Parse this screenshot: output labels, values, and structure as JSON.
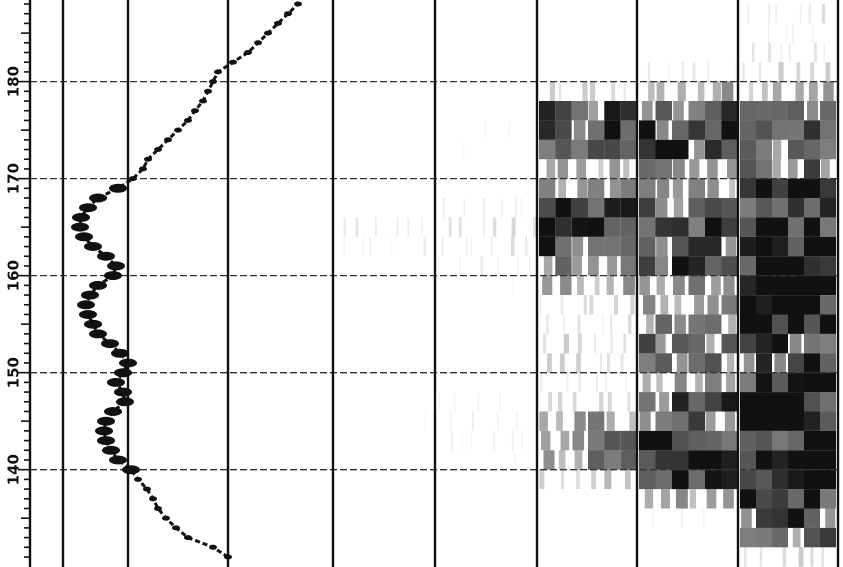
{
  "chart_data": {
    "type": "heatmap",
    "title": "",
    "xlabel": "",
    "ylabel": "",
    "ylim": [
      131,
      188
    ],
    "y_ticks": [
      140,
      150,
      160,
      170,
      180
    ],
    "y_tick_labels": [
      "140",
      "150",
      "160",
      "170",
      "180"
    ],
    "grid": true,
    "colors": {
      "ink": "#111111",
      "background": "#ffffff",
      "grid_dash": "#333333"
    },
    "series": [
      {
        "type": "line",
        "y": [
          131,
          132,
          133,
          134,
          135,
          136,
          137,
          138,
          139,
          140,
          141,
          142,
          143,
          144,
          145,
          146,
          147,
          148,
          149,
          150,
          151,
          152,
          153,
          154,
          155,
          156,
          157,
          158,
          159,
          160,
          161,
          162,
          163,
          164,
          165,
          166,
          167,
          168,
          169,
          170,
          171,
          172,
          173,
          174,
          175,
          176,
          177,
          178,
          179,
          180,
          181,
          182,
          183,
          184,
          185,
          186,
          187,
          188
        ],
        "x": [
          1.0,
          0.85,
          0.6,
          0.48,
          0.38,
          0.3,
          0.25,
          0.19,
          0.1,
          0.03,
          -0.1,
          -0.17,
          -0.22,
          -0.24,
          -0.22,
          -0.15,
          -0.03,
          -0.05,
          -0.12,
          -0.05,
          0.0,
          -0.08,
          -0.18,
          -0.3,
          -0.35,
          -0.4,
          -0.42,
          -0.38,
          -0.3,
          -0.15,
          -0.12,
          -0.22,
          -0.35,
          -0.44,
          -0.48,
          -0.47,
          -0.4,
          -0.3,
          -0.1,
          0.05,
          0.15,
          0.2,
          0.3,
          0.4,
          0.5,
          0.6,
          0.67,
          0.75,
          0.8,
          0.85,
          0.9,
          1.05,
          1.2,
          1.3,
          1.4,
          1.5,
          1.6,
          1.7
        ]
      }
    ],
    "density": {
      "y": [
        131,
        133,
        135,
        137,
        139,
        141,
        143,
        145,
        147,
        149,
        151,
        153,
        155,
        157,
        159,
        161,
        163,
        165,
        167,
        169,
        171,
        173,
        175,
        177,
        179,
        181,
        183,
        185,
        187
      ],
      "col_3": [
        0.0,
        0.0,
        0.0,
        0.0,
        0.0,
        0.0,
        0.02,
        0.03,
        0.02,
        0.0,
        0.0,
        0.0,
        0.0,
        0.0,
        0.0,
        0.02,
        0.06,
        0.08,
        0.02,
        0.0,
        0.0,
        0.0,
        0.0,
        0.0,
        0.0,
        0.0,
        0.0,
        0.0,
        0.0
      ],
      "col_4": [
        0.0,
        0.0,
        0.0,
        0.0,
        0.02,
        0.04,
        0.05,
        0.05,
        0.04,
        0.02,
        0.0,
        0.0,
        0.0,
        0.0,
        0.03,
        0.06,
        0.1,
        0.12,
        0.06,
        0.02,
        0.02,
        0.03,
        0.03,
        0.02,
        0.0,
        0.0,
        0.0,
        0.0,
        0.0
      ],
      "col_5": [
        0.0,
        0.0,
        0.0,
        0.02,
        0.2,
        0.45,
        0.5,
        0.4,
        0.15,
        0.08,
        0.15,
        0.15,
        0.1,
        0.12,
        0.35,
        0.55,
        0.7,
        0.85,
        0.8,
        0.55,
        0.35,
        0.6,
        0.8,
        0.65,
        0.15,
        0.0,
        0.0,
        0.0,
        0.0
      ],
      "col_6": [
        0.0,
        0.02,
        0.05,
        0.35,
        0.75,
        0.8,
        0.75,
        0.7,
        0.7,
        0.45,
        0.5,
        0.55,
        0.5,
        0.45,
        0.55,
        0.7,
        0.7,
        0.75,
        0.6,
        0.4,
        0.45,
        0.7,
        0.8,
        0.6,
        0.35,
        0.08,
        0.0,
        0.0,
        0.0
      ],
      "col_7": [
        0.15,
        0.55,
        0.7,
        0.85,
        0.9,
        0.95,
        0.95,
        0.9,
        0.95,
        0.8,
        0.75,
        0.85,
        0.9,
        0.95,
        0.9,
        0.95,
        0.95,
        0.9,
        0.85,
        0.7,
        0.6,
        0.55,
        0.6,
        0.5,
        0.3,
        0.15,
        0.1,
        0.05,
        0.1
      ]
    }
  }
}
